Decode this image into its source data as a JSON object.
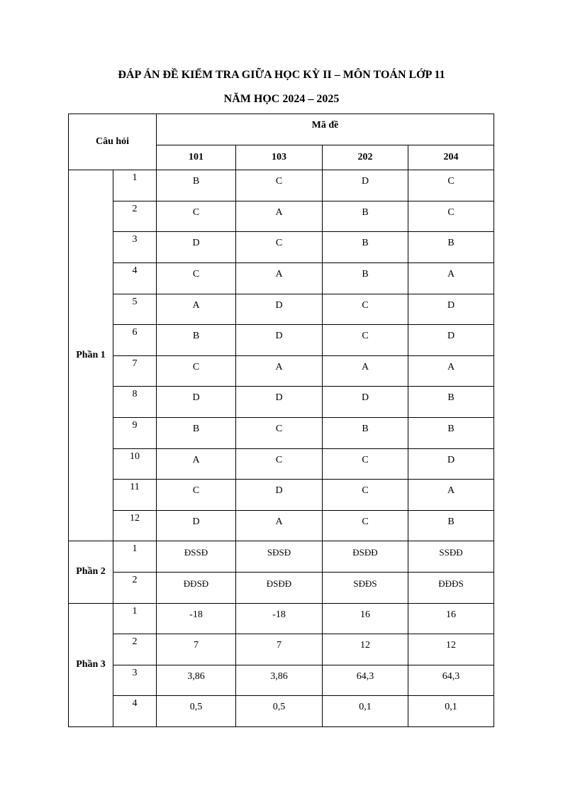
{
  "document": {
    "title_line1": "ĐÁP ÁN ĐỀ KIỂM TRA GIỮA HỌC KỲ II – MÔN TOÁN LỚP 11",
    "title_line2": "NĂM HỌC 2024 – 2025"
  },
  "table": {
    "header_question": "Câu hỏi",
    "header_code": "Mã đề",
    "codes": [
      "101",
      "103",
      "202",
      "204"
    ],
    "parts": [
      {
        "label": "Phần 1",
        "rows": [
          {
            "q": "1",
            "answers": [
              "B",
              "C",
              "D",
              "C"
            ]
          },
          {
            "q": "2",
            "answers": [
              "C",
              "A",
              "B",
              "C"
            ]
          },
          {
            "q": "3",
            "answers": [
              "D",
              "C",
              "B",
              "B"
            ]
          },
          {
            "q": "4",
            "answers": [
              "C",
              "A",
              "B",
              "A"
            ]
          },
          {
            "q": "5",
            "answers": [
              "A",
              "D",
              "C",
              "D"
            ]
          },
          {
            "q": "6",
            "answers": [
              "B",
              "D",
              "C",
              "D"
            ]
          },
          {
            "q": "7",
            "answers": [
              "C",
              "A",
              "A",
              "A"
            ]
          },
          {
            "q": "8",
            "answers": [
              "D",
              "D",
              "D",
              "B"
            ]
          },
          {
            "q": "9",
            "answers": [
              "B",
              "C",
              "B",
              "B"
            ]
          },
          {
            "q": "10",
            "answers": [
              "A",
              "C",
              "C",
              "D"
            ]
          },
          {
            "q": "11",
            "answers": [
              "C",
              "D",
              "C",
              "A"
            ]
          },
          {
            "q": "12",
            "answers": [
              "D",
              "A",
              "C",
              "B"
            ]
          }
        ]
      },
      {
        "label": "Phần 2",
        "rows": [
          {
            "q": "1",
            "answers": [
              "ĐSSĐ",
              "SĐSĐ",
              "ĐSĐĐ",
              "SSĐĐ"
            ]
          },
          {
            "q": "2",
            "answers": [
              "ĐĐSĐ",
              "ĐSĐĐ",
              "SĐĐS",
              "ĐĐĐS"
            ]
          }
        ]
      },
      {
        "label": "Phần 3",
        "rows": [
          {
            "q": "1",
            "answers": [
              "-18",
              "-18",
              "16",
              "16"
            ]
          },
          {
            "q": "2",
            "answers": [
              "7",
              "7",
              "12",
              "12"
            ]
          },
          {
            "q": "3",
            "answers": [
              "3,86",
              "3,86",
              "64,3",
              "64,3"
            ]
          },
          {
            "q": "4",
            "answers": [
              "0,5",
              "0,5",
              "0,1",
              "0,1"
            ]
          }
        ]
      }
    ]
  }
}
